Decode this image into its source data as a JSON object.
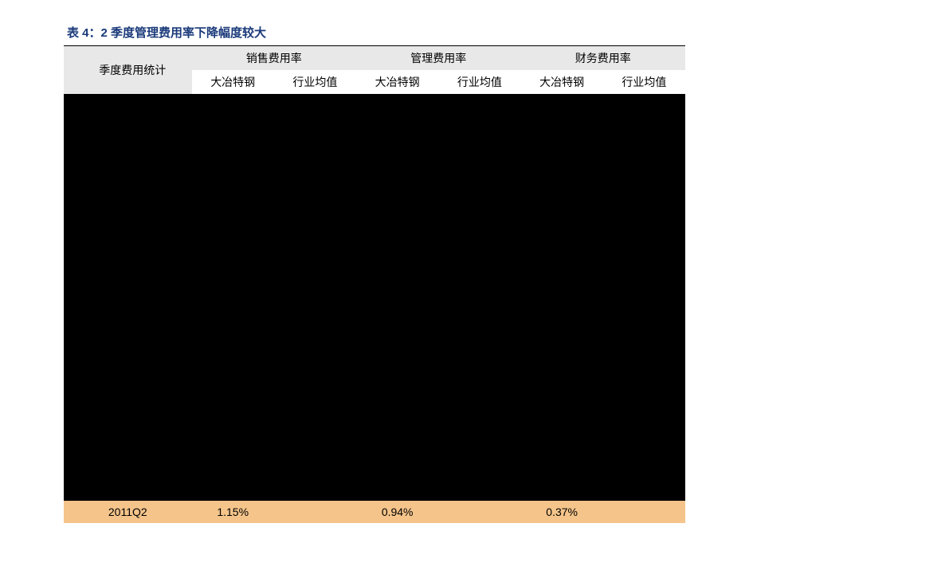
{
  "title": "表 4：2 季度管理费用率下降幅度较大",
  "table": {
    "row_label_header": "季度费用统计",
    "column_groups": [
      {
        "label": "销售费用率",
        "sub1": "大冶特钢",
        "sub2": "行业均值"
      },
      {
        "label": "管理费用率",
        "sub1": "大冶特钢",
        "sub2": "行业均值"
      },
      {
        "label": "财务费用率",
        "sub1": "大冶特钢",
        "sub2": "行业均值"
      }
    ],
    "highlight_row": {
      "label": "2011Q2",
      "values": [
        "1.15%",
        "",
        "0.94%",
        "",
        "0.37%",
        ""
      ]
    }
  },
  "colors": {
    "title_color": "#1a3a7a",
    "header_bg": "#e8e8e8",
    "highlight_bg": "#f4c48a",
    "black_region": "#000000",
    "border_color": "#000000"
  }
}
